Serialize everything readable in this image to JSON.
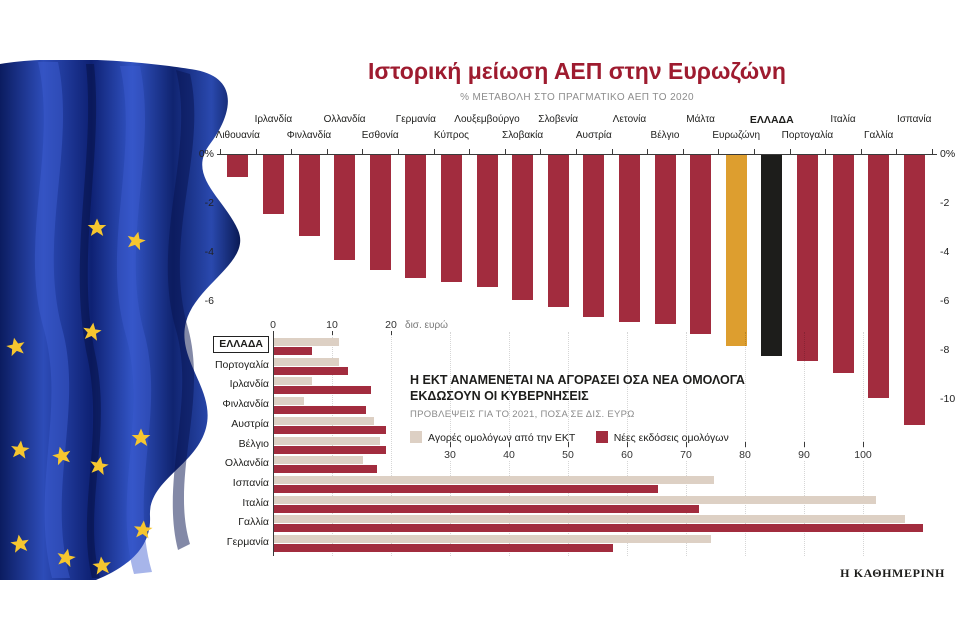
{
  "page": {
    "footer_logo": "Η ΚΑΘΗΜΕΡΙΝΗ"
  },
  "colors": {
    "title_red": "#9e1b2f",
    "bar_red": "#a22c3e",
    "eurozone_orange": "#dd9e2f",
    "greece_black": "#1d1d1b",
    "ecb_beige": "#ddd0c4",
    "text_dark": "#1d1d1b",
    "text_gray": "#8a8a8a"
  },
  "chart_data": [
    {
      "type": "bar",
      "orientation": "vertical",
      "title": "Ιστορική μείωση ΑΕΠ στην Ευρωζώνη",
      "subtitle": "% ΜΕΤΑΒΟΛΗ ΣΤΟ ΠΡΑΓΜΑΤΙΚΟ ΑΕΠ ΤΟ 2020",
      "unit": "%",
      "ylim": [
        -11.5,
        0
      ],
      "yticks_left": [
        "0%",
        "-2",
        "-4",
        "-6"
      ],
      "yticks_right": [
        "0%",
        "-2",
        "-4",
        "-6",
        "-8",
        "-10"
      ],
      "grid": false,
      "categories": [
        "Λιθουανία",
        "Ιρλανδία",
        "Φινλανδία",
        "Ολλανδία",
        "Εσθονία",
        "Γερμανία",
        "Κύπρος",
        "Λουξεμβούργο",
        "Σλοβακία",
        "Σλοβενία",
        "Αυστρία",
        "Λετονία",
        "Βέλγιο",
        "Μάλτα",
        "Ευρωζώνη",
        "ΕΛΛΑΔΑ",
        "Πορτογαλία",
        "Ιταλία",
        "Γαλλία",
        "Ισπανία"
      ],
      "values": [
        -0.9,
        -2.4,
        -3.3,
        -4.3,
        -4.7,
        -5.0,
        -5.2,
        -5.4,
        -5.9,
        -6.2,
        -6.6,
        -6.8,
        -6.9,
        -7.3,
        -7.8,
        -8.2,
        -8.4,
        -8.9,
        -9.9,
        -11.0
      ],
      "bar_colors": {
        "Ευρωζώνη": "eurozone_orange",
        "ΕΛΛΑΔΑ": "greece_black"
      },
      "emphasis": [
        "ΕΛΛΑΔΑ"
      ]
    },
    {
      "type": "bar",
      "orientation": "horizontal",
      "title": "Η ΕΚΤ ΑΝΑΜΕΝΕΤΑΙ ΝΑ ΑΓΟΡΑΣΕΙ ΟΣΑ ΝΕΑ ΟΜΟΛΟΓΑ ΕΚΔΩΣΟΥΝ ΟΙ ΚΥΒΕΡΝΗΣΕΙΣ",
      "subtitle": "ΠΡΟΒΛΕΨΕΙΣ ΓΙΑ ΤΟ 2021, ΠΟΣΑ ΣΕ ΔΙΣ. ΕΥΡΩ",
      "unit_label": "δισ. ευρώ",
      "xlim": [
        0,
        113
      ],
      "xticks_top": [
        0,
        10,
        20
      ],
      "xticks_inner": [
        30,
        40,
        50,
        60,
        70,
        80,
        90,
        100
      ],
      "grid": true,
      "legend_position": "above-right",
      "categories": [
        "ΕΛΛΑΔΑ",
        "Πορτογαλία",
        "Ιρλανδία",
        "Φινλανδία",
        "Αυστρία",
        "Βέλγιο",
        "Ολλανδία",
        "Ισπανία",
        "Ιταλία",
        "Γαλλία",
        "Γερμανία"
      ],
      "series": [
        {
          "name": "Αγορές ομολόγων από την ΕΚΤ",
          "color_key": "ecb_beige",
          "values": [
            11,
            11,
            6.5,
            5,
            17,
            18,
            15,
            74.5,
            102,
            107,
            74
          ]
        },
        {
          "name": "Νέες εκδόσεις ομολόγων",
          "color_key": "bar_red",
          "values": [
            6.5,
            12.5,
            16.5,
            15.5,
            19,
            19,
            17.5,
            65,
            72,
            110,
            57.5
          ]
        }
      ],
      "emphasis": "ΕΛΛΑΔΑ"
    }
  ]
}
